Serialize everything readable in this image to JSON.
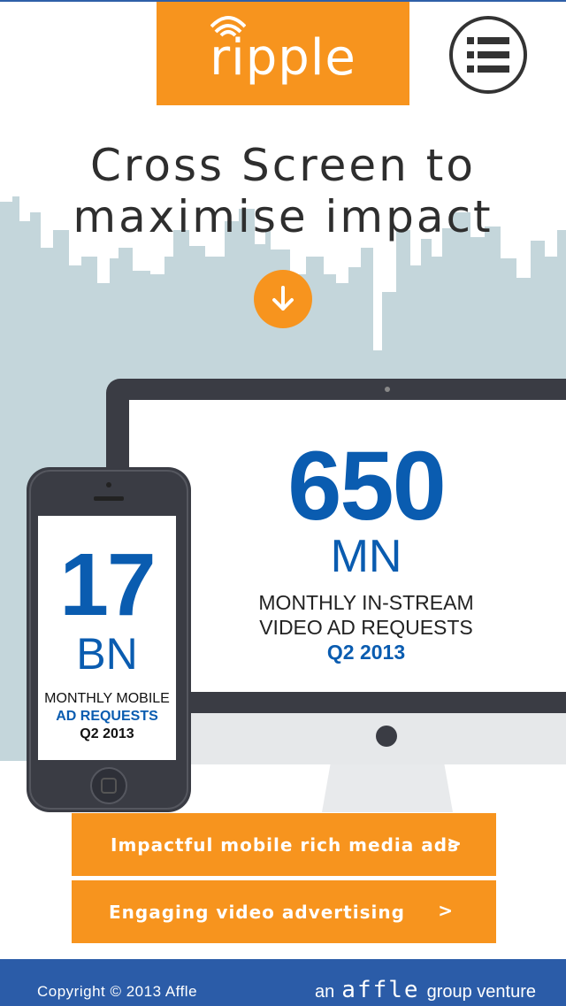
{
  "header": {
    "logo_text": "ripple",
    "logo_icon": "wifi-waves-icon",
    "menu_icon": "list-menu-icon"
  },
  "hero": {
    "headline_line1": "Cross Screen to",
    "headline_line2": "maximise impact",
    "scroll_icon": "arrow-down-icon"
  },
  "monitor_stat": {
    "value": "650",
    "unit": "MN",
    "desc_line1": "MONTHLY IN-STREAM",
    "desc_line2": "VIDEO AD REQUESTS",
    "date": "Q2 2013"
  },
  "phone_stat": {
    "value": "17",
    "unit": "BN",
    "desc_line1": "MONTHLY MOBILE",
    "desc_line2": "AD REQUESTS",
    "date": "Q2 2013"
  },
  "cta": [
    {
      "label": "Impactful mobile rich media ads",
      "arrow": ">"
    },
    {
      "label": "Engaging video advertising",
      "arrow": ">"
    }
  ],
  "footer": {
    "copyright": "Copyright © 2013 Affle",
    "prefix": "an",
    "brand": "affle",
    "suffix": "group venture"
  },
  "colors": {
    "accent_orange": "#f7941e",
    "stat_blue": "#0a5cb0",
    "footer_blue": "#2b5ca8",
    "skyline": "#c4d6db",
    "device_dark": "#3a3c44"
  }
}
